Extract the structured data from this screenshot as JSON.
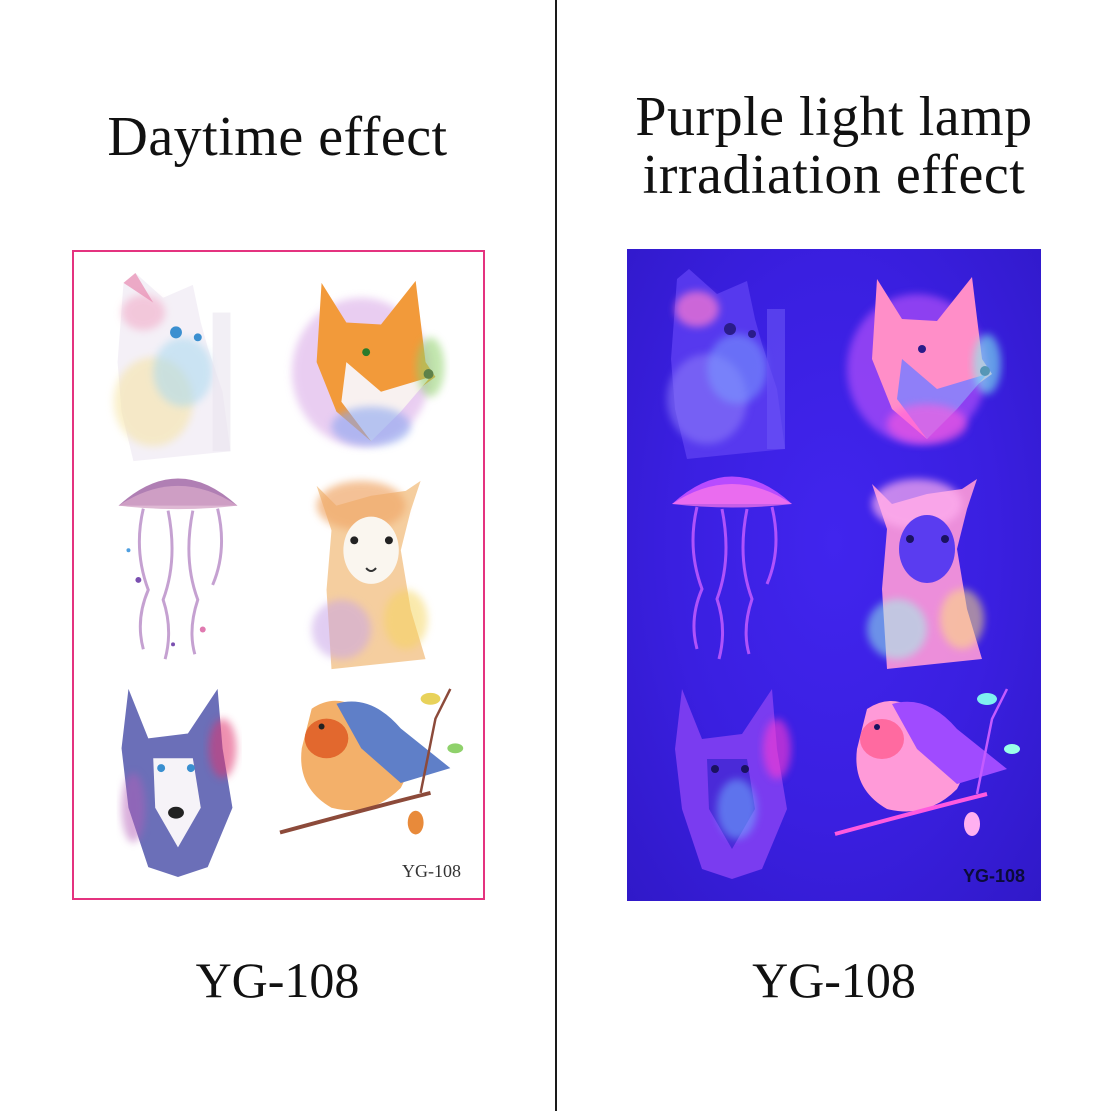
{
  "left": {
    "heading": "Daytime effect",
    "sheet_code": "YG-108",
    "caption": "YG-108",
    "border_color": "#e4337f"
  },
  "right": {
    "heading_line1": "Purple light lamp",
    "heading_line2": "irradiation effect",
    "sheet_code": "YG-108",
    "caption": "YG-108",
    "background_color": "#3a1fe0"
  },
  "tattoos": [
    "cat",
    "fox",
    "jellyfish",
    "alpaca",
    "husky",
    "bird"
  ]
}
